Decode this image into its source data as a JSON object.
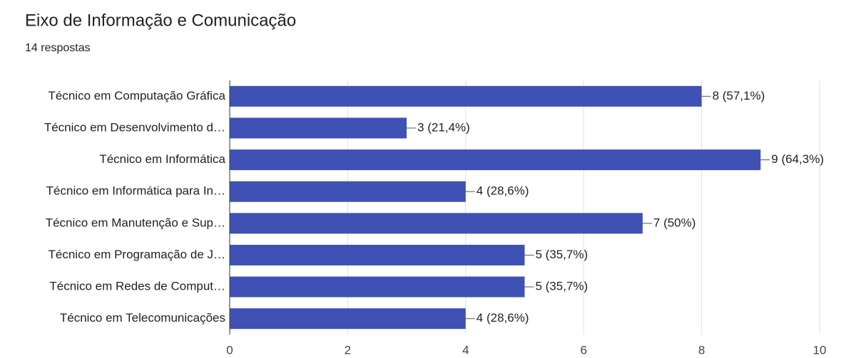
{
  "chart_data": {
    "type": "barh",
    "title": "Eixo de Informação e Comunicação",
    "subtitle": "14 respostas",
    "categories": [
      "Técnico em Computação Gráfica",
      "Técnico em Desenvolvimento d…",
      "Técnico em Informática",
      "Técnico em Informática para In…",
      "Técnico em Manutenção e Sup…",
      "Técnico em Programação de J…",
      "Técnico em Redes de Comput…",
      "Técnico em Telecomunicações"
    ],
    "values": [
      8,
      3,
      9,
      4,
      7,
      5,
      5,
      4
    ],
    "value_labels": [
      "8 (57,1%)",
      "3 (21,4%)",
      "9 (64,3%)",
      "4 (28,6%)",
      "7 (50%)",
      "5 (35,7%)",
      "5 (35,7%)",
      "4 (28,6%)"
    ],
    "color": "#3f51b5",
    "xlim": [
      0,
      10
    ],
    "xticks": [
      0,
      2,
      4,
      6,
      8,
      10
    ],
    "grid": true
  }
}
